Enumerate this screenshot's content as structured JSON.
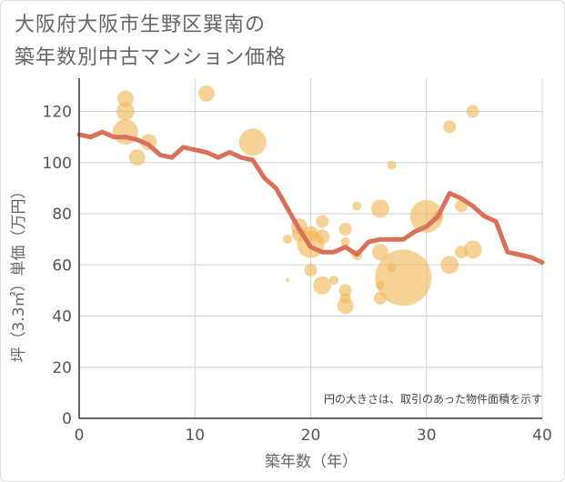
{
  "title_line1": "大阪府大阪市生野区巽南の",
  "title_line2": "築年数別中古マンション価格",
  "chart_data": {
    "type": "scatter",
    "xlabel": "築年数（年）",
    "ylabel": "坪（3.3㎡）単価（万円）",
    "xlim": [
      0,
      40
    ],
    "ylim": [
      0,
      133
    ],
    "xticks": [
      "0",
      "10",
      "20",
      "30",
      "40"
    ],
    "yticks": [
      "0",
      "20",
      "40",
      "60",
      "80",
      "100",
      "120"
    ],
    "grid": true,
    "note": "円の大きさは、取引のあった物件面積を示す",
    "colors": {
      "bubble": "#f2b655",
      "line": "#d9705a",
      "grid": "#c9d3dd",
      "axis": "#333333"
    },
    "bubbles": [
      {
        "x": 4,
        "y": 125,
        "size": 9
      },
      {
        "x": 4,
        "y": 120,
        "size": 10
      },
      {
        "x": 4,
        "y": 112,
        "size": 14
      },
      {
        "x": 5,
        "y": 102,
        "size": 9
      },
      {
        "x": 6,
        "y": 108,
        "size": 9
      },
      {
        "x": 11,
        "y": 127,
        "size": 9
      },
      {
        "x": 15,
        "y": 108,
        "size": 15
      },
      {
        "x": 18,
        "y": 54,
        "size": 2
      },
      {
        "x": 18,
        "y": 70,
        "size": 5
      },
      {
        "x": 19,
        "y": 75,
        "size": 9
      },
      {
        "x": 19,
        "y": 72,
        "size": 8
      },
      {
        "x": 20,
        "y": 72,
        "size": 9
      },
      {
        "x": 20,
        "y": 68,
        "size": 15
      },
      {
        "x": 20,
        "y": 58,
        "size": 7
      },
      {
        "x": 21,
        "y": 77,
        "size": 7
      },
      {
        "x": 21,
        "y": 71,
        "size": 8
      },
      {
        "x": 21,
        "y": 52,
        "size": 10
      },
      {
        "x": 22,
        "y": 54,
        "size": 5
      },
      {
        "x": 23,
        "y": 74,
        "size": 7
      },
      {
        "x": 23,
        "y": 69,
        "size": 5
      },
      {
        "x": 23,
        "y": 50,
        "size": 7
      },
      {
        "x": 23,
        "y": 47,
        "size": 6
      },
      {
        "x": 23,
        "y": 44,
        "size": 9
      },
      {
        "x": 24,
        "y": 83,
        "size": 5
      },
      {
        "x": 24,
        "y": 64,
        "size": 6
      },
      {
        "x": 26,
        "y": 82,
        "size": 10
      },
      {
        "x": 26,
        "y": 65,
        "size": 9
      },
      {
        "x": 26,
        "y": 52,
        "size": 5
      },
      {
        "x": 26,
        "y": 47,
        "size": 7
      },
      {
        "x": 27,
        "y": 99,
        "size": 5
      },
      {
        "x": 27,
        "y": 59,
        "size": 5
      },
      {
        "x": 28,
        "y": 55,
        "size": 31
      },
      {
        "x": 30,
        "y": 79,
        "size": 18
      },
      {
        "x": 31,
        "y": 79,
        "size": 6
      },
      {
        "x": 32,
        "y": 114,
        "size": 7
      },
      {
        "x": 32,
        "y": 60,
        "size": 10
      },
      {
        "x": 33,
        "y": 83,
        "size": 7
      },
      {
        "x": 33,
        "y": 65,
        "size": 7
      },
      {
        "x": 34,
        "y": 120,
        "size": 7
      },
      {
        "x": 34,
        "y": 66,
        "size": 10
      }
    ],
    "series": [
      {
        "x": [
          0,
          1,
          2,
          3,
          4,
          5,
          6,
          7,
          8,
          9,
          10,
          11,
          12,
          13,
          14,
          15,
          16,
          17,
          18,
          19,
          20,
          21,
          22,
          23,
          24,
          25,
          26,
          27,
          28,
          29,
          30,
          31,
          32,
          33,
          34,
          35,
          36,
          37,
          38,
          39,
          40
        ],
        "y": [
          111,
          110,
          112,
          110,
          110,
          109,
          107,
          103,
          102,
          106,
          105,
          104,
          102,
          104,
          102,
          101,
          94,
          90,
          82,
          74,
          67,
          65,
          65,
          67,
          64,
          69,
          70,
          70,
          70,
          73,
          75,
          79,
          88,
          86,
          83,
          79,
          77,
          65,
          64,
          63,
          61
        ]
      }
    ]
  }
}
